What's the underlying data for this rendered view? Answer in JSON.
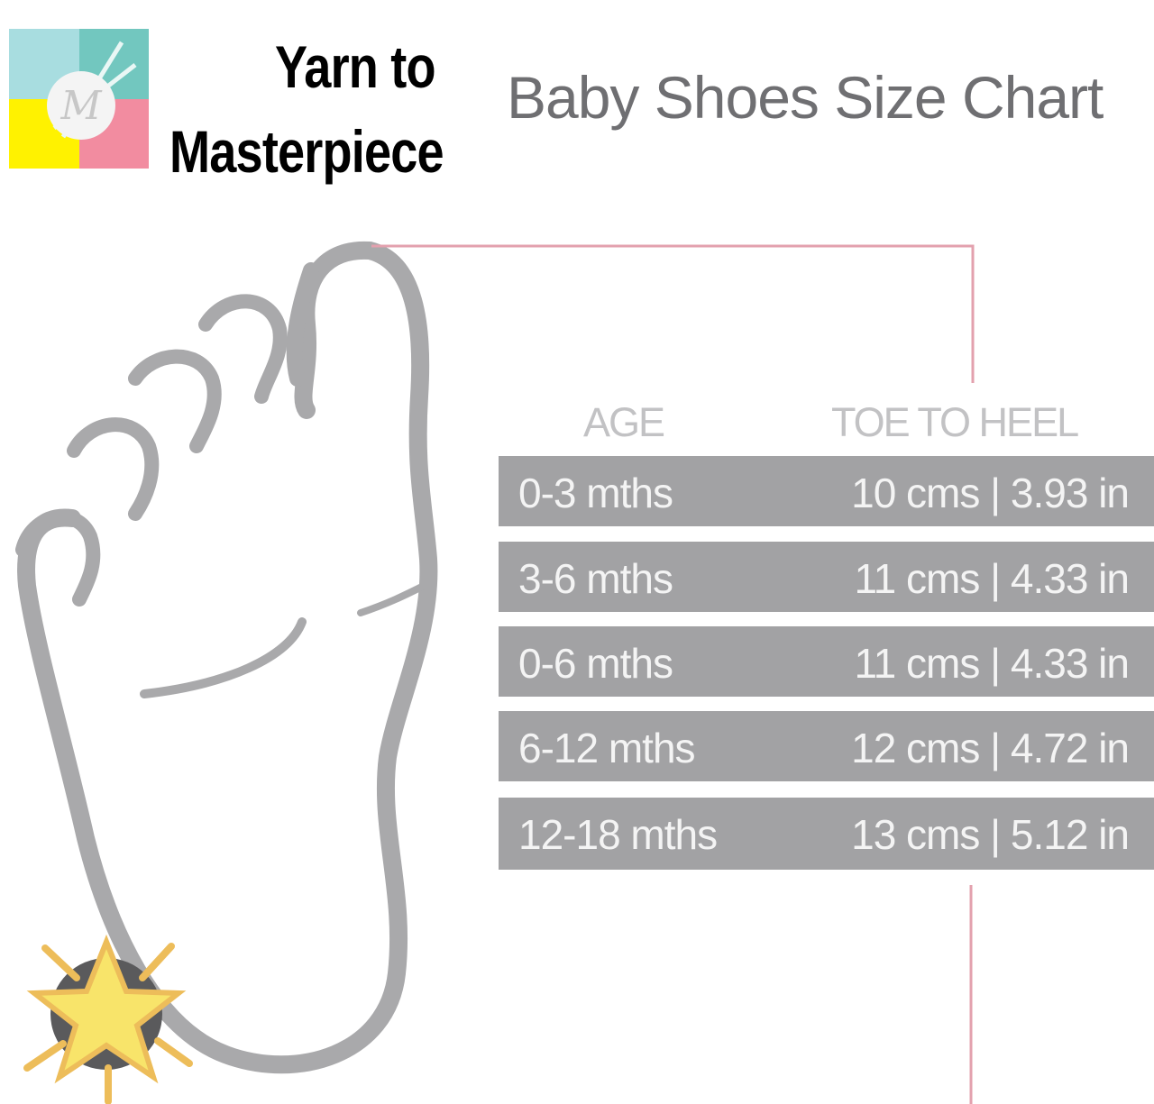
{
  "brand": {
    "line1": "Yarn to",
    "line2": "Masterpiece",
    "logo_letter": "M",
    "logo_colors": [
      "#a8dde0",
      "#72c7bf",
      "#fff200",
      "#f28ca0"
    ]
  },
  "title": "Baby Shoes Size Chart",
  "table": {
    "headers": {
      "age": "AGE",
      "length": "TOE TO HEEL"
    },
    "rows": [
      {
        "age": "0-3 mths",
        "length": "10 cms | 3.93 in"
      },
      {
        "age": "3-6 mths",
        "length": "11 cms | 4.33 in"
      },
      {
        "age": "0-6 mths",
        "length": "11 cms | 4.33 in"
      },
      {
        "age": "6-12 mths",
        "length": "12 cms | 4.72 in"
      },
      {
        "age": "12-18 mths",
        "length": "13 cms | 5.12 in"
      }
    ]
  },
  "colors": {
    "row_bg": "#a2a2a4",
    "foot_outline": "#a9a9ab",
    "measure_line": "#e3a1ae",
    "star": "#f8e46a"
  },
  "icons": {
    "badge": "star-icon"
  }
}
